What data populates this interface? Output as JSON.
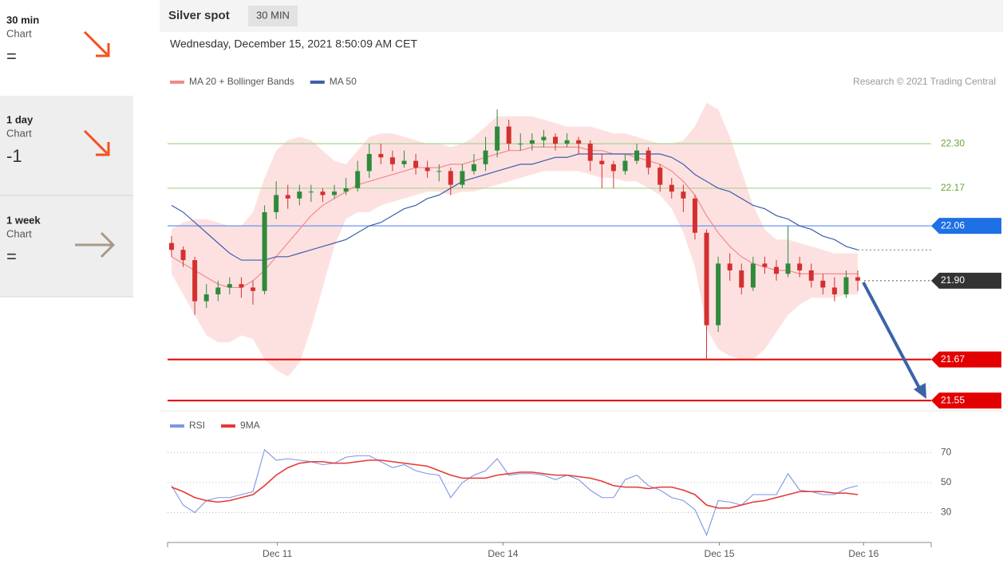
{
  "sidebar": {
    "items": [
      {
        "period": "30 min",
        "label": "Chart",
        "score": "="
      },
      {
        "period": "1 day",
        "label": "Chart",
        "score": "-1"
      },
      {
        "period": "1 week",
        "label": "Chart",
        "score": "="
      }
    ]
  },
  "chart_data": [
    {
      "type": "candlestick",
      "title": "Silver spot",
      "timeframe": "30 MIN",
      "subtitle": "Wednesday, December 15, 2021 8:50:09 AM CET",
      "source": "Research © 2021 Trading Central",
      "xlim": [
        -0.34,
        65.31
      ],
      "ylim": [
        21.52,
        22.44
      ],
      "candle_colors": {
        "up": "#2f8a3b",
        "down": "#d3302f"
      },
      "ohlc": [
        [
          22.01,
          22.03,
          21.97,
          21.99
        ],
        [
          21.99,
          22.0,
          21.94,
          21.96
        ],
        [
          21.96,
          21.97,
          21.8,
          21.84
        ],
        [
          21.84,
          21.89,
          21.82,
          21.86
        ],
        [
          21.86,
          21.9,
          21.84,
          21.88
        ],
        [
          21.88,
          21.91,
          21.86,
          21.89
        ],
        [
          21.89,
          21.91,
          21.85,
          21.88
        ],
        [
          21.88,
          21.9,
          21.83,
          21.87
        ],
        [
          21.87,
          22.12,
          21.86,
          22.1
        ],
        [
          22.1,
          22.19,
          22.08,
          22.15
        ],
        [
          22.15,
          22.18,
          22.11,
          22.14
        ],
        [
          22.14,
          22.18,
          22.12,
          22.16
        ],
        [
          22.16,
          22.18,
          22.13,
          22.16
        ],
        [
          22.16,
          22.17,
          22.13,
          22.15
        ],
        [
          22.15,
          22.18,
          22.14,
          22.16
        ],
        [
          22.16,
          22.2,
          22.15,
          22.17
        ],
        [
          22.17,
          22.25,
          22.16,
          22.22
        ],
        [
          22.22,
          22.3,
          22.2,
          22.27
        ],
        [
          22.27,
          22.3,
          22.24,
          22.26
        ],
        [
          22.26,
          22.28,
          22.22,
          22.24
        ],
        [
          22.24,
          22.28,
          22.23,
          22.25
        ],
        [
          22.25,
          22.27,
          22.21,
          22.23
        ],
        [
          22.23,
          22.25,
          22.2,
          22.22
        ],
        [
          22.22,
          22.24,
          22.19,
          22.22
        ],
        [
          22.22,
          22.23,
          22.15,
          22.18
        ],
        [
          22.18,
          22.24,
          22.17,
          22.22
        ],
        [
          22.22,
          22.27,
          22.21,
          22.24
        ],
        [
          22.24,
          22.32,
          22.22,
          22.28
        ],
        [
          22.28,
          22.4,
          22.26,
          22.35
        ],
        [
          22.35,
          22.37,
          22.28,
          22.3
        ],
        [
          22.3,
          22.33,
          22.28,
          22.3
        ],
        [
          22.3,
          22.33,
          22.28,
          22.31
        ],
        [
          22.31,
          22.34,
          22.29,
          22.32
        ],
        [
          22.32,
          22.33,
          22.28,
          22.3
        ],
        [
          22.3,
          22.33,
          22.29,
          22.31
        ],
        [
          22.31,
          22.32,
          22.27,
          22.3
        ],
        [
          22.3,
          22.31,
          22.22,
          22.25
        ],
        [
          22.25,
          22.27,
          22.17,
          22.24
        ],
        [
          22.24,
          22.25,
          22.17,
          22.22
        ],
        [
          22.22,
          22.27,
          22.21,
          22.25
        ],
        [
          22.25,
          22.3,
          22.24,
          22.28
        ],
        [
          22.28,
          22.29,
          22.21,
          22.23
        ],
        [
          22.23,
          22.24,
          22.16,
          22.18
        ],
        [
          22.18,
          22.2,
          22.14,
          22.16
        ],
        [
          22.16,
          22.18,
          22.1,
          22.14
        ],
        [
          22.14,
          22.15,
          22.02,
          22.04
        ],
        [
          22.04,
          22.05,
          21.67,
          21.77
        ],
        [
          21.77,
          21.97,
          21.75,
          21.95
        ],
        [
          21.95,
          21.98,
          21.9,
          21.93
        ],
        [
          21.93,
          21.95,
          21.86,
          21.88
        ],
        [
          21.88,
          21.97,
          21.87,
          21.95
        ],
        [
          21.95,
          21.97,
          21.92,
          21.94
        ],
        [
          21.94,
          21.96,
          21.9,
          21.92
        ],
        [
          21.92,
          22.06,
          21.91,
          21.95
        ],
        [
          21.95,
          21.97,
          21.91,
          21.93
        ],
        [
          21.93,
          21.95,
          21.88,
          21.9
        ],
        [
          21.9,
          21.92,
          21.86,
          21.88
        ],
        [
          21.88,
          21.91,
          21.84,
          21.86
        ],
        [
          21.86,
          21.93,
          21.85,
          21.91
        ],
        [
          21.91,
          21.93,
          21.87,
          21.9
        ]
      ],
      "series": [
        {
          "name": "MA 20 + Bollinger Bands",
          "color": "#f28b8b",
          "band_color": "#fde1e1",
          "values": [
            21.97,
            21.95,
            21.93,
            21.91,
            21.89,
            21.88,
            21.88,
            21.9,
            21.93,
            21.97,
            22.01,
            22.05,
            22.09,
            22.12,
            22.14,
            22.16,
            22.18,
            22.19,
            22.2,
            22.21,
            22.22,
            22.23,
            22.23,
            22.23,
            22.24,
            22.24,
            22.25,
            22.26,
            22.27,
            22.28,
            22.28,
            22.29,
            22.29,
            22.29,
            22.29,
            22.29,
            22.28,
            22.28,
            22.27,
            22.27,
            22.26,
            22.25,
            22.24,
            22.22,
            22.19,
            22.15,
            22.09,
            22.04,
            22.0,
            21.97,
            21.95,
            21.94,
            21.93,
            21.93,
            21.92,
            21.92,
            21.92,
            21.92,
            21.92,
            21.92
          ],
          "upper": [
            22.05,
            22.07,
            22.08,
            22.08,
            22.07,
            22.06,
            22.06,
            22.1,
            22.2,
            22.28,
            22.31,
            22.32,
            22.31,
            22.28,
            22.25,
            22.24,
            22.28,
            22.32,
            22.33,
            22.33,
            22.32,
            22.31,
            22.3,
            22.3,
            22.29,
            22.3,
            22.32,
            22.35,
            22.38,
            22.38,
            22.38,
            22.38,
            22.37,
            22.36,
            22.35,
            22.35,
            22.35,
            22.34,
            22.33,
            22.33,
            22.32,
            22.31,
            22.3,
            22.3,
            22.31,
            22.35,
            22.42,
            22.4,
            22.32,
            22.22,
            22.12,
            22.05,
            22.02,
            22.02,
            22.01,
            22.0,
            21.99,
            21.98,
            21.98,
            21.98
          ],
          "lower": [
            21.92,
            21.86,
            21.8,
            21.74,
            21.72,
            21.72,
            21.74,
            21.73,
            21.67,
            21.64,
            21.62,
            21.66,
            21.76,
            21.88,
            22.0,
            22.08,
            22.1,
            22.1,
            22.12,
            22.13,
            22.14,
            22.15,
            22.16,
            22.16,
            22.15,
            22.16,
            22.16,
            22.17,
            22.18,
            22.19,
            22.2,
            22.21,
            22.22,
            22.22,
            22.22,
            22.22,
            22.21,
            22.2,
            22.2,
            22.19,
            22.19,
            22.17,
            22.15,
            22.11,
            22.04,
            21.94,
            21.76,
            21.7,
            21.68,
            21.67,
            21.67,
            21.7,
            21.75,
            21.8,
            21.83,
            21.85,
            21.85,
            21.85,
            21.86,
            21.86
          ]
        },
        {
          "name": "MA 50",
          "color": "#3f5fa8",
          "values": [
            22.12,
            22.1,
            22.07,
            22.04,
            22.01,
            21.98,
            21.96,
            21.96,
            21.96,
            21.97,
            21.97,
            21.98,
            21.99,
            22.0,
            22.01,
            22.02,
            22.04,
            22.06,
            22.07,
            22.09,
            22.11,
            22.12,
            22.14,
            22.15,
            22.17,
            22.19,
            22.2,
            22.21,
            22.22,
            22.23,
            22.24,
            22.24,
            22.25,
            22.26,
            22.26,
            22.27,
            22.27,
            22.27,
            22.27,
            22.27,
            22.27,
            22.27,
            22.27,
            22.26,
            22.24,
            22.21,
            22.19,
            22.17,
            22.16,
            22.14,
            22.12,
            22.11,
            22.09,
            22.08,
            22.06,
            22.05,
            22.03,
            22.02,
            22.0,
            21.99
          ]
        }
      ],
      "levels": [
        {
          "value": 22.3,
          "label": "22.30",
          "color": "#a8d38a",
          "text_color": "#6aa33a",
          "tag": false,
          "dotted": false
        },
        {
          "value": 22.17,
          "label": "22.17",
          "color": "#a8d38a",
          "text_color": "#6aa33a",
          "tag": false,
          "dotted": false
        },
        {
          "value": 22.06,
          "label": "22.06",
          "color": "#6b93f0",
          "text_color": "#1f6fe5",
          "tag": true,
          "dotted": false
        },
        {
          "value": 21.9,
          "label": "21.90",
          "color": "#555555",
          "text_color": "#333333",
          "tag": true,
          "dotted": true
        },
        {
          "value": 21.67,
          "label": "21.67",
          "color": "#e00000",
          "text_color": "#e30000",
          "tag": true,
          "dotted": false
        },
        {
          "value": 21.55,
          "label": "21.55",
          "color": "#e00000",
          "text_color": "#e30000",
          "tag": true,
          "dotted": false
        }
      ]
    },
    {
      "type": "line",
      "xlim": [
        -0.34,
        65.31
      ],
      "ylim": [
        10,
        90
      ],
      "yticks": [
        70,
        50,
        30
      ],
      "grid": true,
      "xticks": [
        {
          "value": 9.1,
          "label": "Dec 11"
        },
        {
          "value": 28.5,
          "label": "Dec 14"
        },
        {
          "value": 47.1,
          "label": "Dec 15"
        },
        {
          "value": 59.5,
          "label": "Dec 16"
        }
      ],
      "series": [
        {
          "name": "RSI",
          "color": "#7d95e3",
          "values": [
            48,
            35,
            30,
            38,
            40,
            40,
            42,
            44,
            72,
            65,
            66,
            65,
            64,
            62,
            63,
            67,
            68,
            68,
            64,
            60,
            62,
            58,
            56,
            55,
            40,
            50,
            55,
            58,
            66,
            55,
            56,
            56,
            55,
            52,
            55,
            52,
            45,
            40,
            40,
            52,
            55,
            48,
            45,
            40,
            38,
            32,
            15,
            38,
            37,
            35,
            42,
            42,
            42,
            56,
            45,
            44,
            42,
            42,
            46,
            48
          ]
        },
        {
          "name": "9MA",
          "color": "#e53935",
          "values": [
            47,
            44,
            40,
            38,
            37,
            38,
            40,
            42,
            48,
            55,
            60,
            63,
            64,
            64,
            63,
            63,
            64,
            65,
            65,
            64,
            63,
            62,
            61,
            58,
            55,
            53,
            53,
            53,
            55,
            56,
            57,
            57,
            56,
            55,
            55,
            54,
            53,
            51,
            48,
            47,
            47,
            46,
            47,
            47,
            45,
            42,
            35,
            33,
            33,
            35,
            37,
            38,
            40,
            42,
            44,
            44,
            44,
            43,
            43,
            42
          ]
        }
      ]
    }
  ]
}
